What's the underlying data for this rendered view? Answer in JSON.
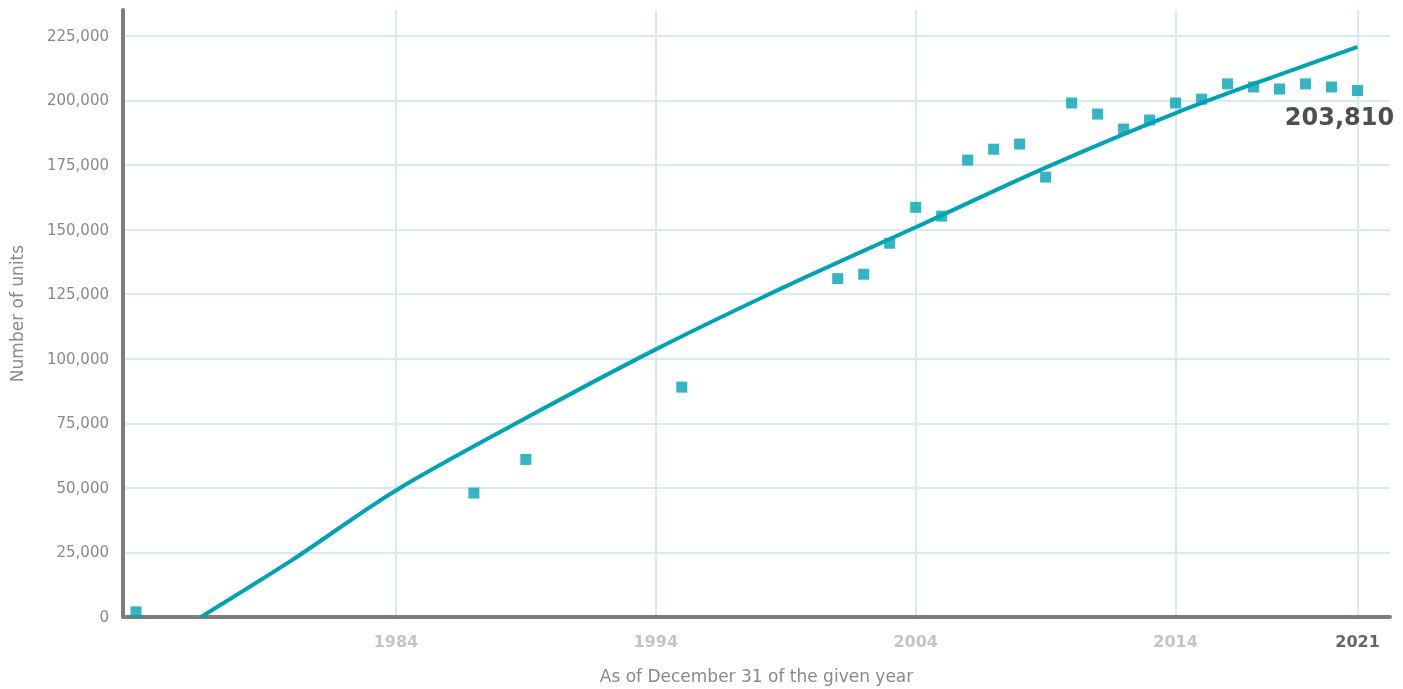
{
  "chart_data": {
    "type": "scatter",
    "xlabel": "As of December 31 of the given year",
    "ylabel": "Number of units",
    "xlim": [
      1973.5,
      2022.25
    ],
    "xticks": [
      1984,
      1994,
      2004,
      2014,
      2021
    ],
    "ylim": [
      0,
      235000
    ],
    "yticks": [
      0,
      {
        "value": 25000,
        "label": "25,000"
      },
      {
        "value": 50000,
        "label": "50,000"
      },
      {
        "value": 75000,
        "label": "75,000"
      },
      {
        "value": 100000,
        "label": "100,000"
      },
      {
        "value": 125000,
        "label": "125,000"
      },
      {
        "value": 150000,
        "label": "150,000"
      },
      {
        "value": 175000,
        "label": "175,000"
      },
      {
        "value": 200000,
        "label": "200,000"
      },
      {
        "value": 225000,
        "label": "225,000"
      }
    ],
    "grid": true,
    "series": [
      {
        "color": "#00a3b4",
        "marker": "square",
        "x": [
          1974,
          1987,
          1989,
          1995,
          2001,
          2002,
          2003,
          2004,
          2005,
          2006,
          2007,
          2008,
          2009,
          2010,
          2011,
          2012,
          2013,
          2014,
          2015,
          2016,
          2017,
          2018,
          2019,
          2020,
          2021
        ],
        "values": [
          2000,
          48000,
          61000,
          89000,
          131000,
          132700,
          144700,
          158600,
          155200,
          176900,
          181100,
          183100,
          170300,
          199000,
          194700,
          188900,
          192400,
          199000,
          200500,
          206400,
          205200,
          204400,
          206400,
          205200,
          203810
        ],
        "value_labels": [
          null,
          null,
          null,
          null,
          null,
          null,
          null,
          null,
          null,
          null,
          null,
          null,
          null,
          null,
          null,
          null,
          null,
          null,
          null,
          null,
          null,
          null,
          null,
          null,
          "203,810"
        ]
      },
      {
        "type": "line",
        "color": "#00a3b4",
        "marker": "none",
        "x": [
          1976.5,
          1980,
          1984,
          1989,
          1994,
          1999,
          2004,
          2009,
          2014,
          2018,
          2021
        ],
        "values": [
          0,
          22000,
          49000,
          77000,
          103600,
          128000,
          150900,
          174000,
          195100,
          210000,
          220700
        ]
      }
    ]
  }
}
